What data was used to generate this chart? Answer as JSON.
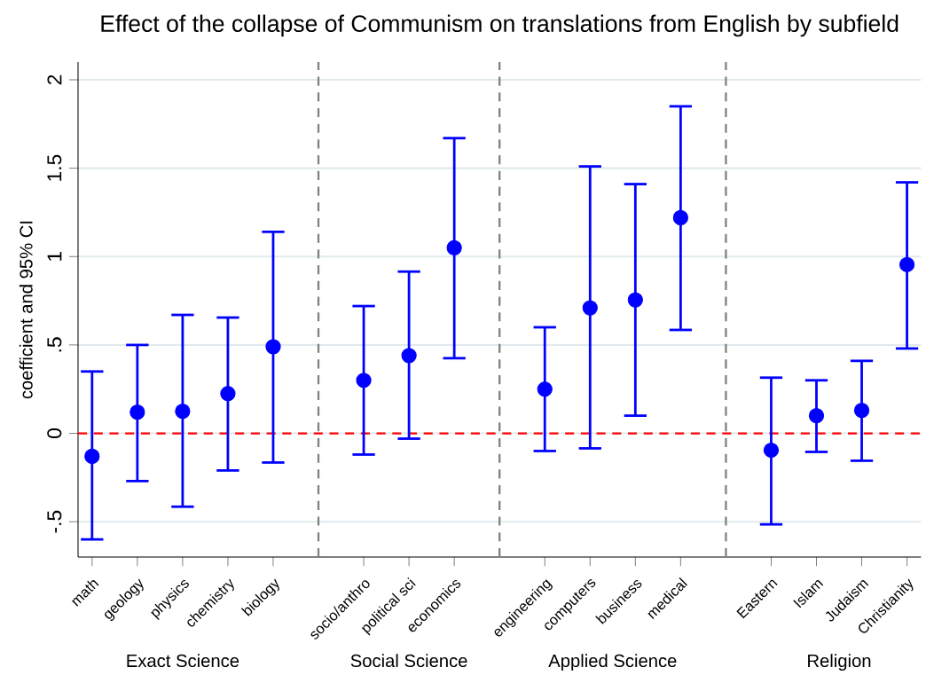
{
  "chart_data": {
    "type": "scatter",
    "title": "Effect of the collapse of Communism on translations from English by subfield",
    "ylabel": "coefficient and 95% CI",
    "categories": [
      "math",
      "geology",
      "physics",
      "chemistry",
      "biology",
      null,
      "socio/anthro",
      "political sci",
      "economics",
      null,
      "engineering",
      "computers",
      "business",
      "medical",
      null,
      "Eastern",
      "Islam",
      "Judaism",
      "Christianity"
    ],
    "values": [
      -0.13,
      0.12,
      0.125,
      0.225,
      0.49,
      null,
      0.3,
      0.44,
      1.05,
      null,
      0.25,
      0.71,
      0.755,
      1.22,
      null,
      -0.095,
      0.1,
      0.13,
      0.955
    ],
    "errors": [
      [
        -0.6,
        0.35
      ],
      [
        -0.27,
        0.5
      ],
      [
        -0.415,
        0.67
      ],
      [
        -0.21,
        0.655
      ],
      [
        -0.165,
        1.14
      ],
      null,
      [
        -0.12,
        0.72
      ],
      [
        -0.03,
        0.915
      ],
      [
        0.425,
        1.67
      ],
      null,
      [
        -0.1,
        0.6
      ],
      [
        -0.085,
        1.51
      ],
      [
        0.1,
        1.41
      ],
      [
        0.585,
        1.85
      ],
      null,
      [
        -0.515,
        0.315
      ],
      [
        -0.105,
        0.3
      ],
      [
        -0.155,
        0.41
      ],
      [
        0.48,
        1.42
      ]
    ],
    "color": "#0000ff",
    "marker": "circle",
    "ylim": [
      -0.7,
      2.1
    ],
    "yticks": [
      {
        "value": -0.5,
        "label": "-.5"
      },
      0,
      {
        "value": 0.5,
        "label": ".5"
      },
      1,
      1.5,
      2
    ],
    "grid": "y",
    "ref_lines": [
      {
        "axis": "y",
        "value": 0,
        "color": "#ff0000",
        "line_style": "dashed"
      }
    ],
    "annotations": [
      "Exact Science",
      "Social Science",
      "Applied Science",
      "Religion"
    ]
  }
}
